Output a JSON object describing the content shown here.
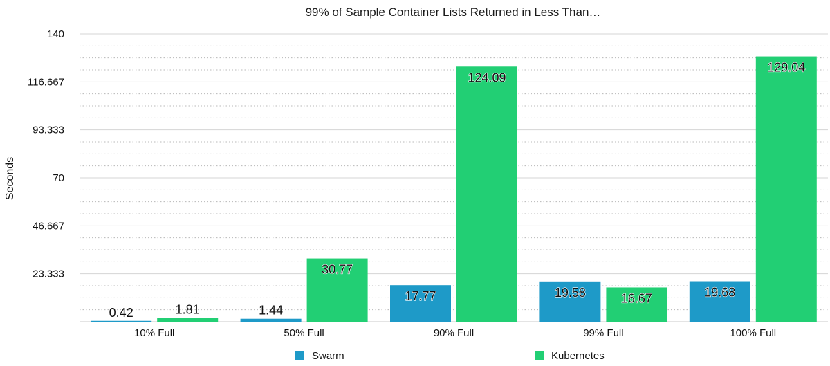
{
  "chart_data": {
    "type": "bar",
    "title": "99% of Sample Container Lists Returned in Less Than…",
    "xlabel": "",
    "ylabel": "Seconds",
    "ylim": [
      0,
      140
    ],
    "yticks": [
      "23.333",
      "46.667",
      "70",
      "93.333",
      "116.667",
      "140"
    ],
    "ytick_values": [
      23.333,
      46.667,
      70,
      93.333,
      116.667,
      140
    ],
    "categories": [
      "10% Full",
      "50% Full",
      "90% Full",
      "99% Full",
      "100% Full"
    ],
    "series": [
      {
        "name": "Swarm",
        "color": "#1e9ac8",
        "values": [
          0.42,
          1.44,
          17.77,
          19.58,
          19.68
        ],
        "labels": [
          "0.42",
          "1.44",
          "17.77",
          "19.58",
          "19.68"
        ]
      },
      {
        "name": "Kubernetes",
        "color": "#22cf74",
        "values": [
          1.81,
          30.77,
          124.09,
          16.67,
          129.04
        ],
        "labels": [
          "1.81",
          "30.77",
          "124.09",
          "16.67",
          "129.04"
        ]
      }
    ],
    "grid": true,
    "legend": "bottom"
  }
}
